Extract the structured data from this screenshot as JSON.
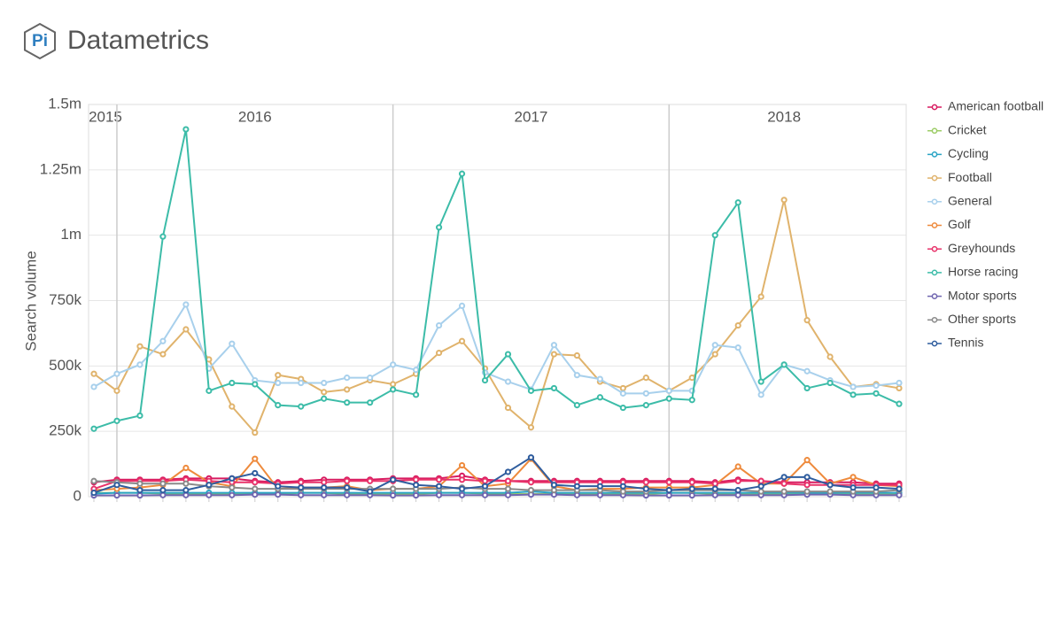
{
  "header": {
    "logo_text": "Pi",
    "title": "Datametrics"
  },
  "chart_data": {
    "type": "line",
    "y_label": "Search volume",
    "categories": [
      null,
      null,
      null,
      null,
      null,
      null,
      null,
      null,
      null,
      null,
      null,
      null,
      null,
      null,
      null,
      null,
      null,
      null,
      null,
      null,
      null,
      null,
      null,
      null,
      null,
      null,
      null,
      null,
      null,
      null,
      null,
      null,
      null,
      null,
      null,
      null
    ],
    "year_bands": [
      {
        "label": "2015",
        "from": 0,
        "to": 1
      },
      {
        "label": "2016",
        "from": 1,
        "to": 13
      },
      {
        "label": "2017",
        "from": 13,
        "to": 25
      },
      {
        "label": "2018",
        "from": 25,
        "to": 35
      }
    ],
    "ylim": [
      0,
      1500000
    ],
    "yticks": [
      0,
      {
        "value": 250000,
        "label": "250k"
      },
      {
        "value": 500000,
        "label": "500k"
      },
      {
        "value": 750000,
        "label": "750k"
      },
      {
        "value": 1000000,
        "label": "1m"
      },
      {
        "value": 1250000,
        "label": "1.25m"
      },
      {
        "value": 1500000,
        "label": "1.5m"
      }
    ],
    "grid": true,
    "legend": "right",
    "series": [
      {
        "name": "American football",
        "color": "#d81b60",
        "values": [
          55000,
          65000,
          65000,
          65000,
          70000,
          70000,
          70000,
          60000,
          55000,
          60000,
          65000,
          65000,
          65000,
          70000,
          70000,
          70000,
          80000,
          65000,
          60000,
          60000,
          60000,
          60000,
          60000,
          60000,
          60000,
          60000,
          60000,
          55000,
          65000,
          60000,
          55000,
          55000,
          55000,
          55000,
          50000,
          50000
        ]
      },
      {
        "name": "Cricket",
        "color": "#9ccc65",
        "values": [
          15000,
          15000,
          15000,
          12000,
          12000,
          12000,
          10000,
          10000,
          10000,
          15000,
          15000,
          10000,
          10000,
          10000,
          10000,
          15000,
          15000,
          12000,
          10000,
          10000,
          10000,
          10000,
          10000,
          8000,
          10000,
          15000,
          15000,
          10000,
          10000,
          10000,
          10000,
          12000,
          12000,
          10000,
          10000,
          10000
        ]
      },
      {
        "name": "Cycling",
        "color": "#29a3c4",
        "values": [
          12000,
          15000,
          15000,
          15000,
          15000,
          15000,
          15000,
          15000,
          15000,
          15000,
          15000,
          15000,
          15000,
          15000,
          15000,
          15000,
          15000,
          15000,
          15000,
          20000,
          15000,
          15000,
          15000,
          15000,
          15000,
          15000,
          15000,
          15000,
          15000,
          15000,
          15000,
          15000,
          15000,
          15000,
          15000,
          15000
        ]
      },
      {
        "name": "Football",
        "color": "#e0b36c",
        "values": [
          470000,
          405000,
          575000,
          545000,
          640000,
          525000,
          345000,
          245000,
          465000,
          450000,
          400000,
          410000,
          445000,
          430000,
          470000,
          550000,
          595000,
          490000,
          340000,
          265000,
          545000,
          540000,
          440000,
          415000,
          455000,
          405000,
          455000,
          545000,
          655000,
          765000,
          1135000,
          675000,
          535000,
          420000,
          430000,
          415000
        ]
      },
      {
        "name": "General",
        "color": "#a8d0ec",
        "values": [
          420000,
          470000,
          505000,
          595000,
          735000,
          490000,
          585000,
          445000,
          435000,
          435000,
          435000,
          455000,
          455000,
          505000,
          485000,
          655000,
          730000,
          475000,
          440000,
          410000,
          580000,
          465000,
          450000,
          395000,
          395000,
          405000,
          405000,
          580000,
          570000,
          390000,
          505000,
          480000,
          445000,
          420000,
          425000,
          435000
        ]
      },
      {
        "name": "Golf",
        "color": "#ee8a3c",
        "values": [
          25000,
          30000,
          35000,
          45000,
          110000,
          55000,
          40000,
          145000,
          30000,
          35000,
          35000,
          40000,
          25000,
          30000,
          30000,
          40000,
          120000,
          40000,
          50000,
          145000,
          40000,
          25000,
          30000,
          30000,
          35000,
          35000,
          35000,
          45000,
          115000,
          50000,
          50000,
          140000,
          50000,
          75000,
          45000,
          40000
        ]
      },
      {
        "name": "Greyhounds",
        "color": "#e8336a",
        "values": [
          30000,
          60000,
          60000,
          60000,
          65000,
          60000,
          55000,
          55000,
          50000,
          55000,
          55000,
          60000,
          60000,
          60000,
          65000,
          65000,
          65000,
          60000,
          60000,
          55000,
          55000,
          55000,
          55000,
          55000,
          55000,
          55000,
          55000,
          50000,
          60000,
          60000,
          50000,
          45000,
          45000,
          45000,
          45000,
          45000
        ]
      },
      {
        "name": "Horse racing",
        "color": "#3cbca8",
        "values": [
          260000,
          290000,
          310000,
          995000,
          1405000,
          405000,
          435000,
          430000,
          350000,
          345000,
          375000,
          360000,
          360000,
          410000,
          390000,
          1030000,
          1235000,
          445000,
          545000,
          405000,
          415000,
          350000,
          380000,
          340000,
          350000,
          375000,
          370000,
          1000000,
          1125000,
          440000,
          505000,
          415000,
          435000,
          390000,
          395000,
          355000
        ]
      },
      {
        "name": "Motor sports",
        "color": "#7066b0",
        "values": [
          5000,
          5000,
          5000,
          6000,
          6000,
          6000,
          6000,
          8000,
          8000,
          6000,
          6000,
          6000,
          6000,
          5000,
          5000,
          6000,
          6000,
          6000,
          6000,
          8000,
          8000,
          6000,
          6000,
          6000,
          5000,
          5000,
          5000,
          6000,
          6000,
          6000,
          6000,
          8000,
          8000,
          6000,
          6000,
          6000
        ]
      },
      {
        "name": "Other sports",
        "color": "#8a8a8a",
        "values": [
          60000,
          55000,
          50000,
          50000,
          50000,
          40000,
          35000,
          30000,
          30000,
          30000,
          30000,
          30000,
          30000,
          30000,
          30000,
          30000,
          35000,
          30000,
          30000,
          25000,
          25000,
          25000,
          25000,
          20000,
          20000,
          25000,
          25000,
          25000,
          25000,
          20000,
          20000,
          20000,
          20000,
          20000,
          20000,
          25000
        ]
      },
      {
        "name": "Tennis",
        "color": "#2f5d9e",
        "values": [
          15000,
          45000,
          25000,
          25000,
          25000,
          45000,
          70000,
          90000,
          40000,
          35000,
          35000,
          35000,
          20000,
          65000,
          45000,
          40000,
          30000,
          40000,
          95000,
          150000,
          45000,
          40000,
          40000,
          40000,
          30000,
          25000,
          30000,
          30000,
          25000,
          40000,
          75000,
          75000,
          45000,
          35000,
          35000,
          30000
        ]
      }
    ]
  }
}
